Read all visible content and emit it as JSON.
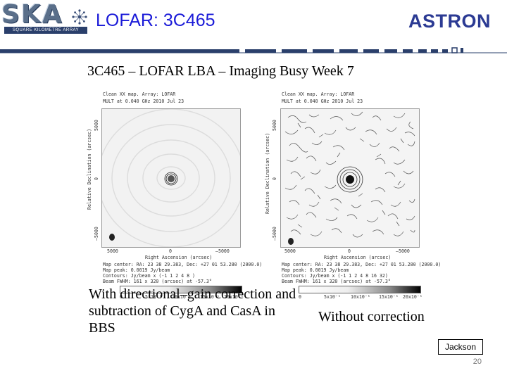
{
  "header": {
    "ska_logo": {
      "letters": "SKA",
      "tagline": "SQUARE KILOMETRE ARRAY"
    },
    "title": "LOFAR: 3C465",
    "astron_logo": "ASTRON",
    "colors": {
      "title": "#1a1ad8",
      "stripe": "#2a3f6b"
    }
  },
  "figure": {
    "heading": "3C465 – LOFAR LBA – Imaging Busy Week 7",
    "left_panel": {
      "map_title": "Clean XX map. Array: LOFAR",
      "map_subtitle": "MULT at 0.040 GHz 2010 Jul 23",
      "y_axis_label": "Relative Declination (arcsec)",
      "x_axis_label": "Right Ascension (arcsec)",
      "x_ticks": [
        "5000",
        "0",
        "–5000"
      ],
      "y_ticks": [
        "5000",
        "0",
        "–5000"
      ],
      "info_lines": [
        "Map center: RA: 23 38 29.383, Dec: +27 01 53.280 (2000.0)",
        "Map peak: 0.0019 Jy/beam",
        "Contours: Jy/beam x (-1 1 2 4 8 )",
        "Beam FWHM: 161 x 320 (arcsec) at -57.3°"
      ],
      "colorbar_ticks": [
        "0",
        "5x10⁻¹",
        "10x10⁻¹",
        "15x10⁻¹",
        "20x10⁻¹"
      ]
    },
    "right_panel": {
      "map_title": "Clean XX map. Array: LOFAR",
      "map_subtitle": "MULT at 0.040 GHz 2010 Jul 23",
      "y_axis_label": "Relative Declination (arcsec)",
      "x_axis_label": "Right Ascension (arcsec)",
      "x_ticks": [
        "5000",
        "0",
        "–5000"
      ],
      "y_ticks": [
        "5000",
        "0",
        "–5000"
      ],
      "info_lines": [
        "Map center: RA: 23 38 29.383, Dec: +27 01 53.280 (2000.0)",
        "Map peak: 0.0019 Jy/beam",
        "Contours: Jy/beam x (-1 1 2 4 8 16 32)",
        "Beam FWHM: 161 x 320 (arcsec) at -57.3°"
      ],
      "colorbar_ticks": [
        "0",
        "5x10⁻¹",
        "10x10⁻¹",
        "15x10⁻¹",
        "20x10⁻¹"
      ]
    },
    "caption_left": "With directional–gain correction and subtraction of CygA and CasA in BBS",
    "caption_right": "Without correction"
  },
  "footer": {
    "credit": "Jackson",
    "page_number": "20"
  }
}
